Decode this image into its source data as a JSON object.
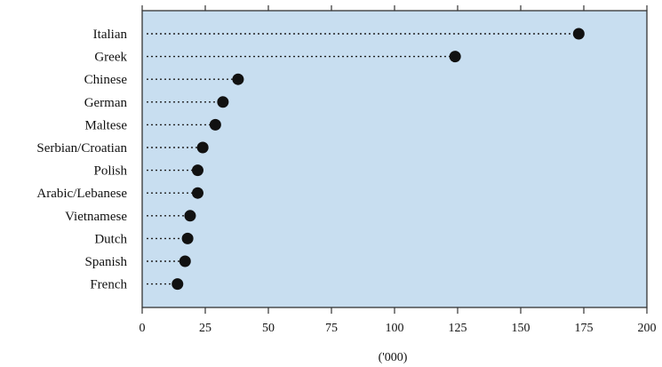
{
  "chart_data": {
    "type": "dot",
    "categories": [
      "Italian",
      "Greek",
      "Chinese",
      "German",
      "Maltese",
      "Serbian/Croatian",
      "Polish",
      "Arabic/Lebanese",
      "Vietnamese",
      "Dutch",
      "Spanish",
      "French"
    ],
    "values": [
      173,
      124,
      38,
      32,
      29,
      24,
      22,
      22,
      19,
      18,
      17,
      14
    ],
    "xlim": [
      0,
      200
    ],
    "x_ticks": [
      0,
      25,
      50,
      75,
      100,
      125,
      150,
      175,
      200
    ],
    "x_tick_labels": [
      "0",
      "25",
      "50",
      "75",
      "100",
      "125",
      "150",
      "175",
      "200"
    ],
    "xlabel": "('000)",
    "grid": false,
    "colors": {
      "plot_background": "#c8def0",
      "marker": "#111111",
      "leader_line": "#222222",
      "frame": "#333333"
    }
  }
}
